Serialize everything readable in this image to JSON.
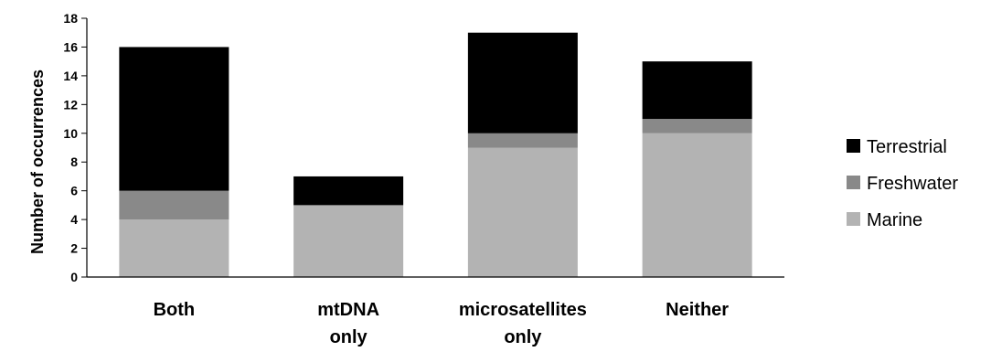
{
  "chart_data": {
    "type": "bar",
    "stacked": true,
    "categories": [
      [
        "Both"
      ],
      [
        "mtDNA",
        "only"
      ],
      [
        "microsatellites",
        "only"
      ],
      [
        "Neither"
      ]
    ],
    "series": [
      {
        "name": "Marine",
        "color": "#b3b3b3",
        "values": [
          4,
          5,
          9,
          10
        ]
      },
      {
        "name": "Freshwater",
        "color": "#898989",
        "values": [
          2,
          0,
          1,
          1
        ]
      },
      {
        "name": "Terrestrial",
        "color": "#000000",
        "values": [
          10,
          2,
          7,
          4
        ]
      }
    ],
    "ylabel": "Number of occurrences",
    "ylim": [
      0,
      18
    ],
    "yticks": [
      0,
      2,
      4,
      6,
      8,
      10,
      12,
      14,
      16,
      18
    ],
    "legend_order": [
      "Terrestrial",
      "Freshwater",
      "Marine"
    ],
    "legend_position": "right",
    "grid": false
  }
}
